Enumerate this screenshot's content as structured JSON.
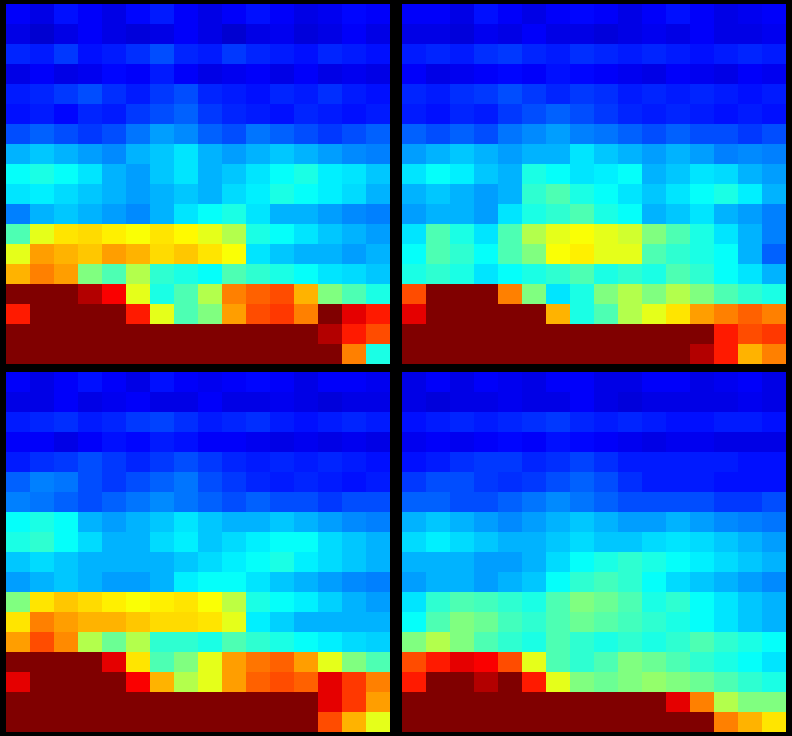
{
  "chart_data": [
    {
      "type": "heatmap",
      "color": "jet",
      "tick_labels": false,
      "color_range": [
        0,
        1
      ],
      "cells": [
        [
          0.12,
          0.1,
          0.14,
          0.12,
          0.1,
          0.13,
          0.15,
          0.12,
          0.1,
          0.12,
          0.14,
          0.12,
          0.1,
          0.11,
          0.13,
          0.12
        ],
        [
          0.1,
          0.08,
          0.1,
          0.12,
          0.1,
          0.09,
          0.1,
          0.12,
          0.1,
          0.08,
          0.1,
          0.11,
          0.09,
          0.1,
          0.12,
          0.1
        ],
        [
          0.16,
          0.15,
          0.18,
          0.14,
          0.15,
          0.17,
          0.2,
          0.16,
          0.15,
          0.18,
          0.16,
          0.15,
          0.14,
          0.16,
          0.15,
          0.14
        ],
        [
          0.1,
          0.12,
          0.1,
          0.11,
          0.13,
          0.12,
          0.15,
          0.12,
          0.1,
          0.11,
          0.12,
          0.1,
          0.12,
          0.1,
          0.11,
          0.1
        ],
        [
          0.15,
          0.16,
          0.18,
          0.2,
          0.17,
          0.15,
          0.18,
          0.2,
          0.16,
          0.15,
          0.14,
          0.16,
          0.15,
          0.17,
          0.15,
          0.14
        ],
        [
          0.14,
          0.15,
          0.13,
          0.16,
          0.15,
          0.18,
          0.2,
          0.22,
          0.18,
          0.16,
          0.15,
          0.14,
          0.16,
          0.15,
          0.14,
          0.15
        ],
        [
          0.2,
          0.22,
          0.2,
          0.18,
          0.2,
          0.24,
          0.28,
          0.26,
          0.22,
          0.2,
          0.24,
          0.22,
          0.2,
          0.18,
          0.2,
          0.22
        ],
        [
          0.3,
          0.32,
          0.3,
          0.28,
          0.26,
          0.3,
          0.32,
          0.35,
          0.3,
          0.28,
          0.3,
          0.32,
          0.3,
          0.28,
          0.26,
          0.25
        ],
        [
          0.38,
          0.4,
          0.38,
          0.35,
          0.3,
          0.28,
          0.32,
          0.35,
          0.3,
          0.32,
          0.35,
          0.38,
          0.4,
          0.36,
          0.35,
          0.32
        ],
        [
          0.35,
          0.36,
          0.34,
          0.32,
          0.3,
          0.28,
          0.3,
          0.32,
          0.3,
          0.34,
          0.36,
          0.4,
          0.38,
          0.36,
          0.34,
          0.3
        ],
        [
          0.25,
          0.3,
          0.32,
          0.3,
          0.28,
          0.26,
          0.3,
          0.35,
          0.38,
          0.4,
          0.35,
          0.3,
          0.3,
          0.28,
          0.26,
          0.25
        ],
        [
          0.45,
          0.6,
          0.65,
          0.66,
          0.64,
          0.62,
          0.65,
          0.63,
          0.6,
          0.55,
          0.4,
          0.38,
          0.35,
          0.32,
          0.3,
          0.28
        ],
        [
          0.6,
          0.72,
          0.7,
          0.68,
          0.72,
          0.7,
          0.66,
          0.68,
          0.65,
          0.62,
          0.35,
          0.32,
          0.3,
          0.3,
          0.28,
          0.3
        ],
        [
          0.7,
          0.75,
          0.72,
          0.5,
          0.45,
          0.55,
          0.42,
          0.4,
          0.38,
          0.45,
          0.42,
          0.4,
          0.38,
          0.35,
          0.34,
          0.32
        ],
        [
          1,
          1,
          1,
          0.95,
          0.88,
          0.6,
          0.4,
          0.45,
          0.55,
          0.75,
          0.78,
          0.8,
          0.7,
          0.5,
          0.45,
          0.4
        ],
        [
          0.85,
          1,
          1,
          1,
          1,
          0.85,
          0.6,
          0.45,
          0.5,
          0.72,
          0.8,
          0.82,
          0.75,
          1,
          0.9,
          0.85
        ],
        [
          1,
          1,
          1,
          1,
          1,
          1,
          1,
          1,
          1,
          1,
          1,
          1,
          1,
          0.95,
          0.85,
          0.8
        ],
        [
          1,
          1,
          1,
          1,
          1,
          1,
          1,
          1,
          1,
          1,
          1,
          1,
          1,
          1,
          0.75,
          0.4
        ]
      ]
    },
    {
      "type": "heatmap",
      "color": "jet",
      "tick_labels": false,
      "color_range": [
        0,
        1
      ],
      "cells": [
        [
          0.12,
          0.12,
          0.1,
          0.14,
          0.12,
          0.1,
          0.12,
          0.13,
          0.12,
          0.1,
          0.12,
          0.14,
          0.12,
          0.1,
          0.11,
          0.12
        ],
        [
          0.1,
          0.1,
          0.09,
          0.11,
          0.1,
          0.12,
          0.1,
          0.1,
          0.09,
          0.1,
          0.11,
          0.1,
          0.12,
          0.1,
          0.1,
          0.11
        ],
        [
          0.15,
          0.16,
          0.15,
          0.17,
          0.18,
          0.16,
          0.15,
          0.17,
          0.16,
          0.15,
          0.16,
          0.15,
          0.14,
          0.15,
          0.16,
          0.15
        ],
        [
          0.12,
          0.1,
          0.11,
          0.12,
          0.13,
          0.12,
          0.14,
          0.13,
          0.12,
          0.11,
          0.1,
          0.12,
          0.11,
          0.1,
          0.12,
          0.11
        ],
        [
          0.16,
          0.15,
          0.17,
          0.18,
          0.2,
          0.18,
          0.16,
          0.18,
          0.17,
          0.15,
          0.16,
          0.15,
          0.16,
          0.15,
          0.14,
          0.15
        ],
        [
          0.15,
          0.14,
          0.16,
          0.15,
          0.18,
          0.2,
          0.22,
          0.2,
          0.18,
          0.16,
          0.15,
          0.16,
          0.15,
          0.14,
          0.15,
          0.14
        ],
        [
          0.22,
          0.2,
          0.22,
          0.2,
          0.24,
          0.26,
          0.28,
          0.25,
          0.24,
          0.22,
          0.2,
          0.22,
          0.2,
          0.2,
          0.18,
          0.2
        ],
        [
          0.28,
          0.3,
          0.32,
          0.3,
          0.28,
          0.3,
          0.3,
          0.35,
          0.32,
          0.3,
          0.28,
          0.3,
          0.28,
          0.25,
          0.26,
          0.25
        ],
        [
          0.35,
          0.38,
          0.36,
          0.32,
          0.3,
          0.4,
          0.38,
          0.35,
          0.36,
          0.38,
          0.3,
          0.32,
          0.35,
          0.34,
          0.3,
          0.28
        ],
        [
          0.3,
          0.32,
          0.3,
          0.28,
          0.3,
          0.42,
          0.45,
          0.4,
          0.38,
          0.35,
          0.32,
          0.35,
          0.38,
          0.4,
          0.36,
          0.3
        ],
        [
          0.28,
          0.3,
          0.3,
          0.28,
          0.35,
          0.4,
          0.42,
          0.45,
          0.4,
          0.38,
          0.3,
          0.32,
          0.35,
          0.3,
          0.28,
          0.25
        ],
        [
          0.35,
          0.45,
          0.4,
          0.35,
          0.45,
          0.55,
          0.6,
          0.62,
          0.6,
          0.58,
          0.5,
          0.45,
          0.4,
          0.35,
          0.3,
          0.25
        ],
        [
          0.38,
          0.45,
          0.42,
          0.38,
          0.45,
          0.5,
          0.62,
          0.64,
          0.6,
          0.6,
          0.45,
          0.42,
          0.4,
          0.38,
          0.3,
          0.22
        ],
        [
          0.4,
          0.42,
          0.4,
          0.35,
          0.38,
          0.4,
          0.42,
          0.45,
          0.4,
          0.42,
          0.4,
          0.45,
          0.42,
          0.38,
          0.35,
          0.3
        ],
        [
          0.8,
          1,
          1,
          1,
          0.75,
          0.5,
          0.35,
          0.4,
          0.5,
          0.55,
          0.5,
          0.55,
          0.5,
          0.45,
          0.42,
          0.4
        ],
        [
          0.9,
          1,
          1,
          1,
          1,
          1,
          0.7,
          0.4,
          0.45,
          0.55,
          0.6,
          0.65,
          0.72,
          0.75,
          0.78,
          0.75
        ],
        [
          1,
          1,
          1,
          1,
          1,
          1,
          1,
          1,
          1,
          1,
          1,
          1,
          1,
          0.85,
          0.8,
          0.82
        ],
        [
          1,
          1,
          1,
          1,
          1,
          1,
          1,
          1,
          1,
          1,
          1,
          1,
          0.95,
          0.85,
          0.7,
          0.75
        ]
      ]
    },
    {
      "type": "heatmap",
      "color": "jet",
      "tick_labels": false,
      "color_range": [
        0,
        1
      ],
      "cells": [
        [
          0.12,
          0.1,
          0.12,
          0.14,
          0.12,
          0.1,
          0.14,
          0.12,
          0.11,
          0.12,
          0.13,
          0.12,
          0.1,
          0.12,
          0.12,
          0.11
        ],
        [
          0.1,
          0.1,
          0.12,
          0.1,
          0.11,
          0.12,
          0.1,
          0.1,
          0.12,
          0.1,
          0.1,
          0.11,
          0.1,
          0.09,
          0.1,
          0.1
        ],
        [
          0.15,
          0.16,
          0.17,
          0.15,
          0.16,
          0.18,
          0.19,
          0.17,
          0.15,
          0.16,
          0.17,
          0.15,
          0.14,
          0.15,
          0.16,
          0.15
        ],
        [
          0.12,
          0.12,
          0.1,
          0.12,
          0.14,
          0.13,
          0.15,
          0.14,
          0.12,
          0.12,
          0.11,
          0.1,
          0.11,
          0.1,
          0.11,
          0.1
        ],
        [
          0.15,
          0.17,
          0.18,
          0.2,
          0.18,
          0.16,
          0.18,
          0.2,
          0.18,
          0.16,
          0.15,
          0.16,
          0.15,
          0.16,
          0.15,
          0.14
        ],
        [
          0.22,
          0.25,
          0.24,
          0.2,
          0.18,
          0.2,
          0.22,
          0.24,
          0.2,
          0.18,
          0.16,
          0.15,
          0.16,
          0.15,
          0.14,
          0.15
        ],
        [
          0.25,
          0.24,
          0.22,
          0.2,
          0.22,
          0.24,
          0.26,
          0.24,
          0.22,
          0.2,
          0.22,
          0.2,
          0.2,
          0.18,
          0.2,
          0.2
        ],
        [
          0.38,
          0.4,
          0.38,
          0.3,
          0.28,
          0.3,
          0.32,
          0.35,
          0.32,
          0.3,
          0.3,
          0.32,
          0.3,
          0.28,
          0.26,
          0.25
        ],
        [
          0.4,
          0.42,
          0.38,
          0.34,
          0.3,
          0.3,
          0.34,
          0.36,
          0.32,
          0.34,
          0.36,
          0.38,
          0.38,
          0.34,
          0.32,
          0.3
        ],
        [
          0.32,
          0.34,
          0.32,
          0.3,
          0.3,
          0.3,
          0.3,
          0.32,
          0.34,
          0.36,
          0.38,
          0.4,
          0.36,
          0.34,
          0.32,
          0.3
        ],
        [
          0.28,
          0.3,
          0.32,
          0.3,
          0.28,
          0.28,
          0.3,
          0.36,
          0.38,
          0.38,
          0.35,
          0.32,
          0.3,
          0.28,
          0.26,
          0.25
        ],
        [
          0.5,
          0.65,
          0.68,
          0.66,
          0.64,
          0.62,
          0.64,
          0.65,
          0.62,
          0.56,
          0.4,
          0.38,
          0.36,
          0.33,
          0.3,
          0.28
        ],
        [
          0.65,
          0.75,
          0.72,
          0.7,
          0.7,
          0.68,
          0.66,
          0.66,
          0.65,
          0.6,
          0.36,
          0.33,
          0.3,
          0.3,
          0.3,
          0.3
        ],
        [
          0.72,
          0.8,
          0.74,
          0.55,
          0.48,
          0.55,
          0.42,
          0.42,
          0.4,
          0.45,
          0.42,
          0.4,
          0.38,
          0.36,
          0.34,
          0.33
        ],
        [
          1,
          1,
          1,
          1,
          0.9,
          0.65,
          0.45,
          0.5,
          0.6,
          0.72,
          0.76,
          0.78,
          0.72,
          0.6,
          0.5,
          0.45
        ],
        [
          0.9,
          1,
          1,
          1,
          1,
          0.88,
          0.7,
          0.55,
          0.6,
          0.72,
          0.78,
          0.8,
          0.78,
          0.9,
          0.82,
          0.75
        ],
        [
          1,
          1,
          1,
          1,
          1,
          1,
          1,
          1,
          1,
          1,
          1,
          1,
          1,
          0.9,
          0.82,
          0.72
        ],
        [
          1,
          1,
          1,
          1,
          1,
          1,
          1,
          1,
          1,
          1,
          1,
          1,
          1,
          0.8,
          0.7,
          0.6
        ]
      ]
    },
    {
      "type": "heatmap",
      "color": "jet",
      "tick_labels": false,
      "color_range": [
        0,
        1
      ],
      "cells": [
        [
          0.1,
          0.12,
          0.1,
          0.12,
          0.11,
          0.1,
          0.12,
          0.12,
          0.1,
          0.1,
          0.12,
          0.12,
          0.1,
          0.11,
          0.12,
          0.1
        ],
        [
          0.1,
          0.09,
          0.1,
          0.1,
          0.11,
          0.1,
          0.1,
          0.12,
          0.1,
          0.09,
          0.1,
          0.1,
          0.1,
          0.1,
          0.11,
          0.1
        ],
        [
          0.14,
          0.15,
          0.16,
          0.15,
          0.16,
          0.17,
          0.18,
          0.16,
          0.15,
          0.16,
          0.15,
          0.14,
          0.14,
          0.15,
          0.15,
          0.14
        ],
        [
          0.11,
          0.12,
          0.11,
          0.12,
          0.13,
          0.12,
          0.14,
          0.13,
          0.12,
          0.11,
          0.1,
          0.11,
          0.11,
          0.1,
          0.1,
          0.1
        ],
        [
          0.14,
          0.15,
          0.17,
          0.18,
          0.18,
          0.16,
          0.17,
          0.19,
          0.17,
          0.15,
          0.15,
          0.15,
          0.15,
          0.15,
          0.14,
          0.14
        ],
        [
          0.18,
          0.2,
          0.2,
          0.18,
          0.17,
          0.18,
          0.2,
          0.22,
          0.2,
          0.17,
          0.15,
          0.15,
          0.15,
          0.14,
          0.14,
          0.14
        ],
        [
          0.22,
          0.22,
          0.2,
          0.2,
          0.22,
          0.24,
          0.26,
          0.24,
          0.22,
          0.2,
          0.2,
          0.2,
          0.2,
          0.18,
          0.18,
          0.2
        ],
        [
          0.3,
          0.32,
          0.3,
          0.28,
          0.26,
          0.28,
          0.3,
          0.32,
          0.3,
          0.28,
          0.28,
          0.3,
          0.28,
          0.26,
          0.25,
          0.24
        ],
        [
          0.34,
          0.36,
          0.34,
          0.32,
          0.3,
          0.3,
          0.32,
          0.34,
          0.32,
          0.32,
          0.34,
          0.35,
          0.34,
          0.32,
          0.3,
          0.28
        ],
        [
          0.3,
          0.3,
          0.3,
          0.28,
          0.28,
          0.3,
          0.34,
          0.38,
          0.4,
          0.42,
          0.4,
          0.38,
          0.36,
          0.34,
          0.32,
          0.3
        ],
        [
          0.28,
          0.3,
          0.3,
          0.28,
          0.3,
          0.32,
          0.38,
          0.42,
          0.44,
          0.42,
          0.38,
          0.34,
          0.32,
          0.3,
          0.28,
          0.26
        ],
        [
          0.35,
          0.42,
          0.45,
          0.44,
          0.42,
          0.4,
          0.45,
          0.5,
          0.48,
          0.45,
          0.4,
          0.42,
          0.38,
          0.35,
          0.32,
          0.3
        ],
        [
          0.38,
          0.45,
          0.5,
          0.48,
          0.44,
          0.42,
          0.45,
          0.48,
          0.46,
          0.44,
          0.42,
          0.4,
          0.38,
          0.35,
          0.32,
          0.3
        ],
        [
          0.5,
          0.55,
          0.5,
          0.45,
          0.42,
          0.4,
          0.45,
          0.42,
          0.4,
          0.42,
          0.4,
          0.42,
          0.45,
          0.42,
          0.4,
          0.38
        ],
        [
          0.8,
          0.85,
          0.9,
          0.88,
          0.8,
          0.6,
          0.45,
          0.42,
          0.45,
          0.5,
          0.48,
          0.45,
          0.42,
          0.4,
          0.38,
          0.35
        ],
        [
          0.85,
          1,
          1,
          0.95,
          1,
          0.85,
          0.6,
          0.5,
          0.48,
          0.5,
          0.52,
          0.5,
          0.48,
          0.45,
          0.42,
          0.4
        ],
        [
          1,
          1,
          1,
          1,
          1,
          1,
          1,
          1,
          1,
          1,
          1,
          0.9,
          0.75,
          0.55,
          0.5,
          0.5
        ],
        [
          1,
          1,
          1,
          1,
          1,
          1,
          1,
          1,
          1,
          1,
          1,
          1,
          1,
          0.75,
          0.7,
          0.65
        ]
      ]
    }
  ]
}
